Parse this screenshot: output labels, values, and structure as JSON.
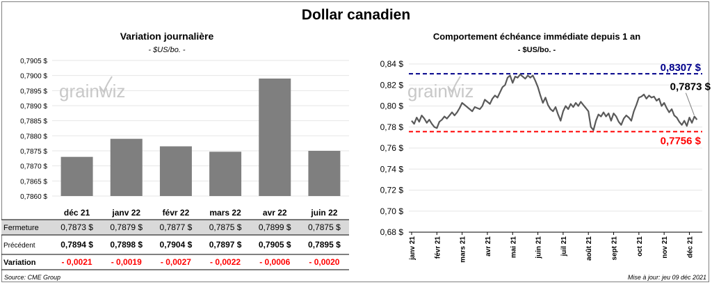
{
  "title": "Dollar canadien",
  "chart_data": [
    {
      "type": "bar",
      "title": "Variation  journalière",
      "subtitle": "- $US/bo. -",
      "categories": [
        "déc 21",
        "janv 22",
        "févr 22",
        "mars 22",
        "avr 22",
        "juin 22"
      ],
      "values": [
        0.7873,
        0.7879,
        0.78765,
        0.78747,
        0.7899,
        0.7875
      ],
      "yticks": [
        "0,7860 $",
        "0,7865 $",
        "0,7870 $",
        "0,7875 $",
        "0,7880 $",
        "0,7885 $",
        "0,7890 $",
        "0,7895 $",
        "0,7900 $",
        "0,7905 $"
      ],
      "ylim": [
        0.786,
        0.7905
      ],
      "bar_color": "#7f7f7f",
      "watermark": "grainwiz",
      "table": {
        "rows": [
          {
            "label": "Fermeture",
            "values": [
              "0,7873 $",
              "0,7879 $",
              "0,7877 $",
              "0,7875 $",
              "0,7899 $",
              "0,7875 $"
            ]
          },
          {
            "label": "Précédent",
            "values": [
              "0,7894 $",
              "0,7898 $",
              "0,7904 $",
              "0,7897 $",
              "0,7905 $",
              "0,7895 $"
            ]
          },
          {
            "label": "Variation",
            "values": [
              "- 0,0021",
              "- 0,0019",
              "- 0,0027",
              "- 0,0022",
              "- 0,0006",
              "- 0,0020"
            ]
          }
        ],
        "shade_color": "#d9d9d9",
        "variation_color": "#ff0000"
      }
    },
    {
      "type": "line",
      "title": "Comportement échéance immédiate depuis 1 an",
      "subtitle": "- $US/bo. -",
      "xticks": [
        "janv 21",
        "févr 21",
        "mars 21",
        "avr 21",
        "mai 21",
        "juin 21",
        "juil 21",
        "août 21",
        "sept 21",
        "oct 21",
        "nov 21",
        "déc 21"
      ],
      "yticks": [
        "0,68 $",
        "0,70 $",
        "0,72 $",
        "0,74 $",
        "0,76 $",
        "0,78 $",
        "0,80 $",
        "0,82 $",
        "0,84 $"
      ],
      "ylim": [
        0.68,
        0.84
      ],
      "x_unit": "months since janv 21",
      "line_color": "#595959",
      "watermark": "grainwiz",
      "high": {
        "value": 0.8307,
        "label": "0,8307 $",
        "color": "#00008b"
      },
      "low": {
        "value": 0.7756,
        "label": "0,7756 $",
        "color": "#ff0000"
      },
      "last": {
        "value": 0.7873,
        "label": "0,7873 $"
      },
      "x": [
        0,
        0.1,
        0.2,
        0.3,
        0.4,
        0.5,
        0.6,
        0.7,
        0.8,
        0.9,
        1.0,
        1.1,
        1.2,
        1.3,
        1.4,
        1.5,
        1.6,
        1.7,
        1.8,
        1.9,
        2.0,
        2.1,
        2.2,
        2.3,
        2.4,
        2.5,
        2.6,
        2.7,
        2.8,
        2.9,
        3.0,
        3.1,
        3.2,
        3.3,
        3.4,
        3.5,
        3.6,
        3.7,
        3.8,
        3.9,
        4.0,
        4.1,
        4.2,
        4.3,
        4.4,
        4.5,
        4.6,
        4.7,
        4.8,
        4.9,
        5.0,
        5.1,
        5.2,
        5.3,
        5.4,
        5.5,
        5.6,
        5.7,
        5.8,
        5.9,
        6.0,
        6.1,
        6.2,
        6.3,
        6.4,
        6.5,
        6.6,
        6.7,
        6.8,
        6.9,
        7.0,
        7.1,
        7.2,
        7.3,
        7.4,
        7.5,
        7.6,
        7.7,
        7.8,
        7.9,
        8.0,
        8.1,
        8.2,
        8.3,
        8.4,
        8.5,
        8.6,
        8.7,
        8.8,
        8.9,
        9.0,
        9.1,
        9.2,
        9.3,
        9.4,
        9.5,
        9.6,
        9.7,
        9.8,
        9.9,
        10.0,
        10.1,
        10.2,
        10.3,
        10.4,
        10.5,
        10.6,
        10.7,
        10.8,
        10.9,
        11.0,
        11.1,
        11.2,
        11.3
      ],
      "y": [
        0.786,
        0.783,
        0.789,
        0.785,
        0.791,
        0.788,
        0.784,
        0.787,
        0.783,
        0.78,
        0.779,
        0.785,
        0.787,
        0.79,
        0.788,
        0.791,
        0.794,
        0.791,
        0.794,
        0.798,
        0.803,
        0.801,
        0.799,
        0.797,
        0.795,
        0.799,
        0.798,
        0.797,
        0.8,
        0.806,
        0.804,
        0.802,
        0.807,
        0.81,
        0.808,
        0.813,
        0.818,
        0.82,
        0.827,
        0.829,
        0.822,
        0.828,
        0.827,
        0.83,
        0.828,
        0.826,
        0.829,
        0.827,
        0.829,
        0.824,
        0.818,
        0.81,
        0.803,
        0.808,
        0.801,
        0.797,
        0.795,
        0.799,
        0.792,
        0.786,
        0.795,
        0.8,
        0.797,
        0.802,
        0.799,
        0.803,
        0.8,
        0.804,
        0.801,
        0.798,
        0.795,
        0.78,
        0.777,
        0.786,
        0.792,
        0.79,
        0.794,
        0.79,
        0.793,
        0.786,
        0.793,
        0.79,
        0.785,
        0.782,
        0.788,
        0.791,
        0.789,
        0.786,
        0.795,
        0.801,
        0.808,
        0.809,
        0.811,
        0.807,
        0.81,
        0.808,
        0.809,
        0.805,
        0.807,
        0.8,
        0.803,
        0.798,
        0.794,
        0.797,
        0.791,
        0.789,
        0.785,
        0.782,
        0.786,
        0.781,
        0.789,
        0.784,
        0.79,
        0.787
      ]
    }
  ],
  "footer": {
    "source": "Source: CME Group",
    "updated": "Mise à jour: jeu 09 déc 2021"
  }
}
